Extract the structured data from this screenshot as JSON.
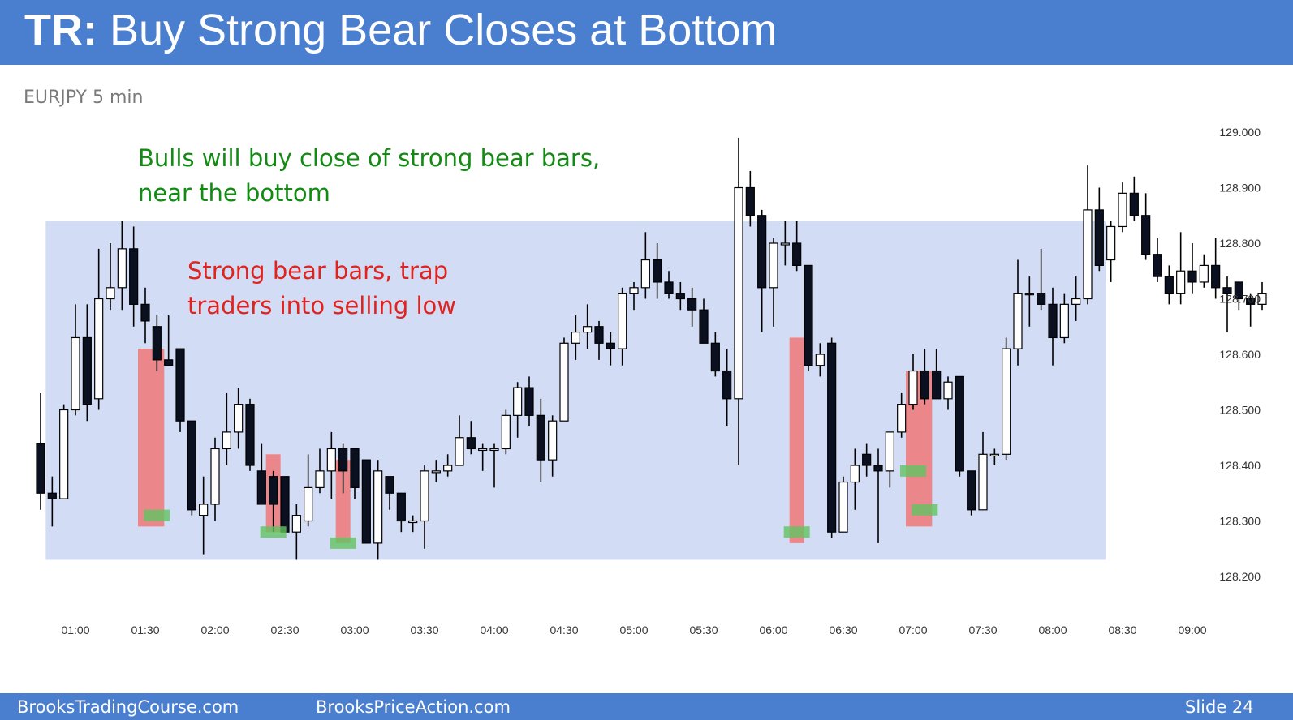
{
  "slide": {
    "title_prefix": "TR:",
    "title_rest": " Buy Strong Bear Closes at Bottom",
    "subtitle": "EURJPY 5 min",
    "annotation_green": [
      "Bulls will buy close of strong bear bars,",
      "near the bottom"
    ],
    "annotation_red": [
      "Strong bear bars, trap",
      "traders into selling low"
    ],
    "footer_left": "BrooksTradingCourse.com",
    "footer_mid": "BrooksPriceAction.com",
    "footer_right": "Slide  24"
  },
  "colors": {
    "header_bg": "#4a7fd0",
    "range_box": "#d2dcf4",
    "strong_bear_highlight": "#f07878",
    "close_marker": "#62c462",
    "bear_body": "#0b1020",
    "bull_body": "#ffffff",
    "annotation_green": "#138a13",
    "annotation_red": "#e0231f"
  },
  "chart_data": {
    "type": "candlestick",
    "symbol": "EURJPY",
    "timeframe": "5 min",
    "ylim": [
      128.15,
      129.05
    ],
    "y_ticks": [
      "128.200",
      "128.300",
      "128.400",
      "128.500",
      "128.600",
      "128.700",
      "128.800",
      "128.900",
      "129.000"
    ],
    "x_ticks": [
      "01:00",
      "01:30",
      "02:00",
      "02:30",
      "03:00",
      "03:30",
      "04:00",
      "04:30",
      "05:00",
      "05:30",
      "06:00",
      "06:30",
      "07:00",
      "07:30",
      "08:00",
      "08:30",
      "09:00"
    ],
    "bar_interval_minutes": 5,
    "first_bar_time": "00:45",
    "bars": [
      {
        "o": 128.44,
        "h": 128.53,
        "l": 128.32,
        "c": 128.35
      },
      {
        "o": 128.35,
        "h": 128.38,
        "l": 128.29,
        "c": 128.34
      },
      {
        "o": 128.34,
        "h": 128.51,
        "l": 128.34,
        "c": 128.5
      },
      {
        "o": 128.5,
        "h": 128.69,
        "l": 128.49,
        "c": 128.63
      },
      {
        "o": 128.63,
        "h": 128.69,
        "l": 128.48,
        "c": 128.51
      },
      {
        "o": 128.52,
        "h": 128.79,
        "l": 128.5,
        "c": 128.7
      },
      {
        "o": 128.7,
        "h": 128.8,
        "l": 128.68,
        "c": 128.72
      },
      {
        "o": 128.72,
        "h": 128.84,
        "l": 128.68,
        "c": 128.79
      },
      {
        "o": 128.79,
        "h": 128.83,
        "l": 128.65,
        "c": 128.69
      },
      {
        "o": 128.69,
        "h": 128.72,
        "l": 128.62,
        "c": 128.66
      },
      {
        "o": 128.65,
        "h": 128.67,
        "l": 128.57,
        "c": 128.59
      },
      {
        "o": 128.59,
        "h": 128.67,
        "l": 128.58,
        "c": 128.58
      },
      {
        "o": 128.61,
        "h": 128.61,
        "l": 128.46,
        "c": 128.48
      },
      {
        "o": 128.48,
        "h": 128.48,
        "l": 128.31,
        "c": 128.32
      },
      {
        "o": 128.31,
        "h": 128.38,
        "l": 128.24,
        "c": 128.33
      },
      {
        "o": 128.33,
        "h": 128.45,
        "l": 128.3,
        "c": 128.43
      },
      {
        "o": 128.43,
        "h": 128.53,
        "l": 128.4,
        "c": 128.46
      },
      {
        "o": 128.46,
        "h": 128.54,
        "l": 128.43,
        "c": 128.51
      },
      {
        "o": 128.51,
        "h": 128.52,
        "l": 128.39,
        "c": 128.4
      },
      {
        "o": 128.39,
        "h": 128.44,
        "l": 128.33,
        "c": 128.33
      },
      {
        "o": 128.38,
        "h": 128.39,
        "l": 128.28,
        "c": 128.33
      },
      {
        "o": 128.38,
        "h": 128.38,
        "l": 128.28,
        "c": 128.28
      },
      {
        "o": 128.28,
        "h": 128.33,
        "l": 128.23,
        "c": 128.31
      },
      {
        "o": 128.3,
        "h": 128.42,
        "l": 128.29,
        "c": 128.36
      },
      {
        "o": 128.36,
        "h": 128.43,
        "l": 128.35,
        "c": 128.39
      },
      {
        "o": 128.39,
        "h": 128.46,
        "l": 128.34,
        "c": 128.43
      },
      {
        "o": 128.43,
        "h": 128.44,
        "l": 128.35,
        "c": 128.39
      },
      {
        "o": 128.43,
        "h": 128.43,
        "l": 128.34,
        "c": 128.36
      },
      {
        "o": 128.41,
        "h": 128.41,
        "l": 128.26,
        "c": 128.26
      },
      {
        "o": 128.26,
        "h": 128.41,
        "l": 128.23,
        "c": 128.39
      },
      {
        "o": 128.38,
        "h": 128.38,
        "l": 128.32,
        "c": 128.35
      },
      {
        "o": 128.35,
        "h": 128.35,
        "l": 128.28,
        "c": 128.3
      },
      {
        "o": 128.3,
        "h": 128.31,
        "l": 128.28,
        "c": 128.3
      },
      {
        "o": 128.3,
        "h": 128.4,
        "l": 128.25,
        "c": 128.39
      },
      {
        "o": 128.39,
        "h": 128.41,
        "l": 128.37,
        "c": 128.39
      },
      {
        "o": 128.39,
        "h": 128.42,
        "l": 128.38,
        "c": 128.4
      },
      {
        "o": 128.4,
        "h": 128.49,
        "l": 128.4,
        "c": 128.45
      },
      {
        "o": 128.45,
        "h": 128.48,
        "l": 128.42,
        "c": 128.43
      },
      {
        "o": 128.43,
        "h": 128.44,
        "l": 128.39,
        "c": 128.43
      },
      {
        "o": 128.43,
        "h": 128.44,
        "l": 128.36,
        "c": 128.43
      },
      {
        "o": 128.43,
        "h": 128.5,
        "l": 128.42,
        "c": 128.49
      },
      {
        "o": 128.49,
        "h": 128.55,
        "l": 128.45,
        "c": 128.54
      },
      {
        "o": 128.54,
        "h": 128.56,
        "l": 128.47,
        "c": 128.49
      },
      {
        "o": 128.49,
        "h": 128.52,
        "l": 128.37,
        "c": 128.41
      },
      {
        "o": 128.41,
        "h": 128.49,
        "l": 128.38,
        "c": 128.48
      },
      {
        "o": 128.48,
        "h": 128.63,
        "l": 128.48,
        "c": 128.62
      },
      {
        "o": 128.62,
        "h": 128.67,
        "l": 128.59,
        "c": 128.64
      },
      {
        "o": 128.64,
        "h": 128.69,
        "l": 128.61,
        "c": 128.65
      },
      {
        "o": 128.65,
        "h": 128.66,
        "l": 128.59,
        "c": 128.62
      },
      {
        "o": 128.62,
        "h": 128.64,
        "l": 128.58,
        "c": 128.61
      },
      {
        "o": 128.61,
        "h": 128.72,
        "l": 128.58,
        "c": 128.71
      },
      {
        "o": 128.71,
        "h": 128.73,
        "l": 128.68,
        "c": 128.72
      },
      {
        "o": 128.72,
        "h": 128.82,
        "l": 128.7,
        "c": 128.77
      },
      {
        "o": 128.77,
        "h": 128.8,
        "l": 128.7,
        "c": 128.73
      },
      {
        "o": 128.73,
        "h": 128.75,
        "l": 128.7,
        "c": 128.71
      },
      {
        "o": 128.71,
        "h": 128.73,
        "l": 128.68,
        "c": 128.7
      },
      {
        "o": 128.7,
        "h": 128.72,
        "l": 128.65,
        "c": 128.68
      },
      {
        "o": 128.68,
        "h": 128.7,
        "l": 128.62,
        "c": 128.62
      },
      {
        "o": 128.62,
        "h": 128.64,
        "l": 128.56,
        "c": 128.57
      },
      {
        "o": 128.57,
        "h": 128.61,
        "l": 128.47,
        "c": 128.52
      },
      {
        "o": 128.52,
        "h": 128.99,
        "l": 128.4,
        "c": 128.9
      },
      {
        "o": 128.9,
        "h": 128.93,
        "l": 128.83,
        "c": 128.85
      },
      {
        "o": 128.85,
        "h": 128.86,
        "l": 128.64,
        "c": 128.72
      },
      {
        "o": 128.72,
        "h": 128.81,
        "l": 128.65,
        "c": 128.8
      },
      {
        "o": 128.8,
        "h": 128.84,
        "l": 128.76,
        "c": 128.8
      },
      {
        "o": 128.8,
        "h": 128.84,
        "l": 128.75,
        "c": 128.76
      },
      {
        "o": 128.76,
        "h": 128.76,
        "l": 128.57,
        "c": 128.58
      },
      {
        "o": 128.58,
        "h": 128.62,
        "l": 128.56,
        "c": 128.6
      },
      {
        "o": 128.62,
        "h": 128.63,
        "l": 128.27,
        "c": 128.28
      },
      {
        "o": 128.28,
        "h": 128.38,
        "l": 128.28,
        "c": 128.37
      },
      {
        "o": 128.37,
        "h": 128.43,
        "l": 128.32,
        "c": 128.4
      },
      {
        "o": 128.42,
        "h": 128.44,
        "l": 128.38,
        "c": 128.4
      },
      {
        "o": 128.4,
        "h": 128.43,
        "l": 128.26,
        "c": 128.39
      },
      {
        "o": 128.39,
        "h": 128.46,
        "l": 128.36,
        "c": 128.46
      },
      {
        "o": 128.46,
        "h": 128.53,
        "l": 128.45,
        "c": 128.51
      },
      {
        "o": 128.51,
        "h": 128.6,
        "l": 128.5,
        "c": 128.57
      },
      {
        "o": 128.57,
        "h": 128.61,
        "l": 128.51,
        "c": 128.52
      },
      {
        "o": 128.57,
        "h": 128.61,
        "l": 128.52,
        "c": 128.52
      },
      {
        "o": 128.52,
        "h": 128.56,
        "l": 128.5,
        "c": 128.55
      },
      {
        "o": 128.56,
        "h": 128.56,
        "l": 128.38,
        "c": 128.39
      },
      {
        "o": 128.39,
        "h": 128.39,
        "l": 128.31,
        "c": 128.32
      },
      {
        "o": 128.32,
        "h": 128.46,
        "l": 128.32,
        "c": 128.42
      },
      {
        "o": 128.42,
        "h": 128.43,
        "l": 128.4,
        "c": 128.42
      },
      {
        "o": 128.42,
        "h": 128.63,
        "l": 128.41,
        "c": 128.61
      },
      {
        "o": 128.61,
        "h": 128.77,
        "l": 128.58,
        "c": 128.71
      },
      {
        "o": 128.71,
        "h": 128.74,
        "l": 128.65,
        "c": 128.71
      },
      {
        "o": 128.71,
        "h": 128.79,
        "l": 128.68,
        "c": 128.69
      },
      {
        "o": 128.69,
        "h": 128.72,
        "l": 128.58,
        "c": 128.63
      },
      {
        "o": 128.63,
        "h": 128.71,
        "l": 128.62,
        "c": 128.69
      },
      {
        "o": 128.69,
        "h": 128.74,
        "l": 128.66,
        "c": 128.7
      },
      {
        "o": 128.7,
        "h": 128.94,
        "l": 128.69,
        "c": 128.86
      },
      {
        "o": 128.86,
        "h": 128.9,
        "l": 128.75,
        "c": 128.76
      },
      {
        "o": 128.77,
        "h": 128.84,
        "l": 128.73,
        "c": 128.83
      },
      {
        "o": 128.83,
        "h": 128.91,
        "l": 128.82,
        "c": 128.89
      },
      {
        "o": 128.89,
        "h": 128.92,
        "l": 128.84,
        "c": 128.85
      },
      {
        "o": 128.85,
        "h": 128.89,
        "l": 128.77,
        "c": 128.78
      },
      {
        "o": 128.78,
        "h": 128.81,
        "l": 128.73,
        "c": 128.74
      },
      {
        "o": 128.74,
        "h": 128.76,
        "l": 128.69,
        "c": 128.71
      },
      {
        "o": 128.71,
        "h": 128.82,
        "l": 128.69,
        "c": 128.75
      },
      {
        "o": 128.75,
        "h": 128.8,
        "l": 128.71,
        "c": 128.73
      },
      {
        "o": 128.73,
        "h": 128.78,
        "l": 128.72,
        "c": 128.76
      },
      {
        "o": 128.76,
        "h": 128.81,
        "l": 128.7,
        "c": 128.72
      },
      {
        "o": 128.72,
        "h": 128.74,
        "l": 128.64,
        "c": 128.71
      },
      {
        "o": 128.73,
        "h": 128.73,
        "l": 128.68,
        "c": 128.7
      },
      {
        "o": 128.7,
        "h": 128.71,
        "l": 128.65,
        "c": 128.69
      },
      {
        "o": 128.69,
        "h": 128.73,
        "l": 128.68,
        "c": 128.71
      }
    ],
    "range_box": {
      "x_start": "00:50",
      "x_end": "08:20",
      "y_low": 128.23,
      "y_high": 128.84
    },
    "strong_bear_highlights": [
      {
        "x_start": "01:30",
        "x_end": "01:35",
        "y_low": 128.29,
        "y_high": 128.61
      },
      {
        "x_start": "02:25",
        "x_end": "02:25",
        "y_low": 128.28,
        "y_high": 128.42
      },
      {
        "x_start": "02:55",
        "x_end": "02:55",
        "y_low": 128.26,
        "y_high": 128.41
      },
      {
        "x_start": "06:10",
        "x_end": "06:10",
        "y_low": 128.26,
        "y_high": 128.63
      },
      {
        "x_start": "07:00",
        "x_end": "07:05",
        "y_low": 128.29,
        "y_high": 128.57
      }
    ],
    "close_markers": [
      {
        "x": "01:35",
        "y": 128.31
      },
      {
        "x": "02:25",
        "y": 128.28
      },
      {
        "x": "02:55",
        "y": 128.26
      },
      {
        "x": "06:10",
        "y": 128.28
      },
      {
        "x": "07:00",
        "y": 128.39
      },
      {
        "x": "07:05",
        "y": 128.32
      }
    ]
  }
}
